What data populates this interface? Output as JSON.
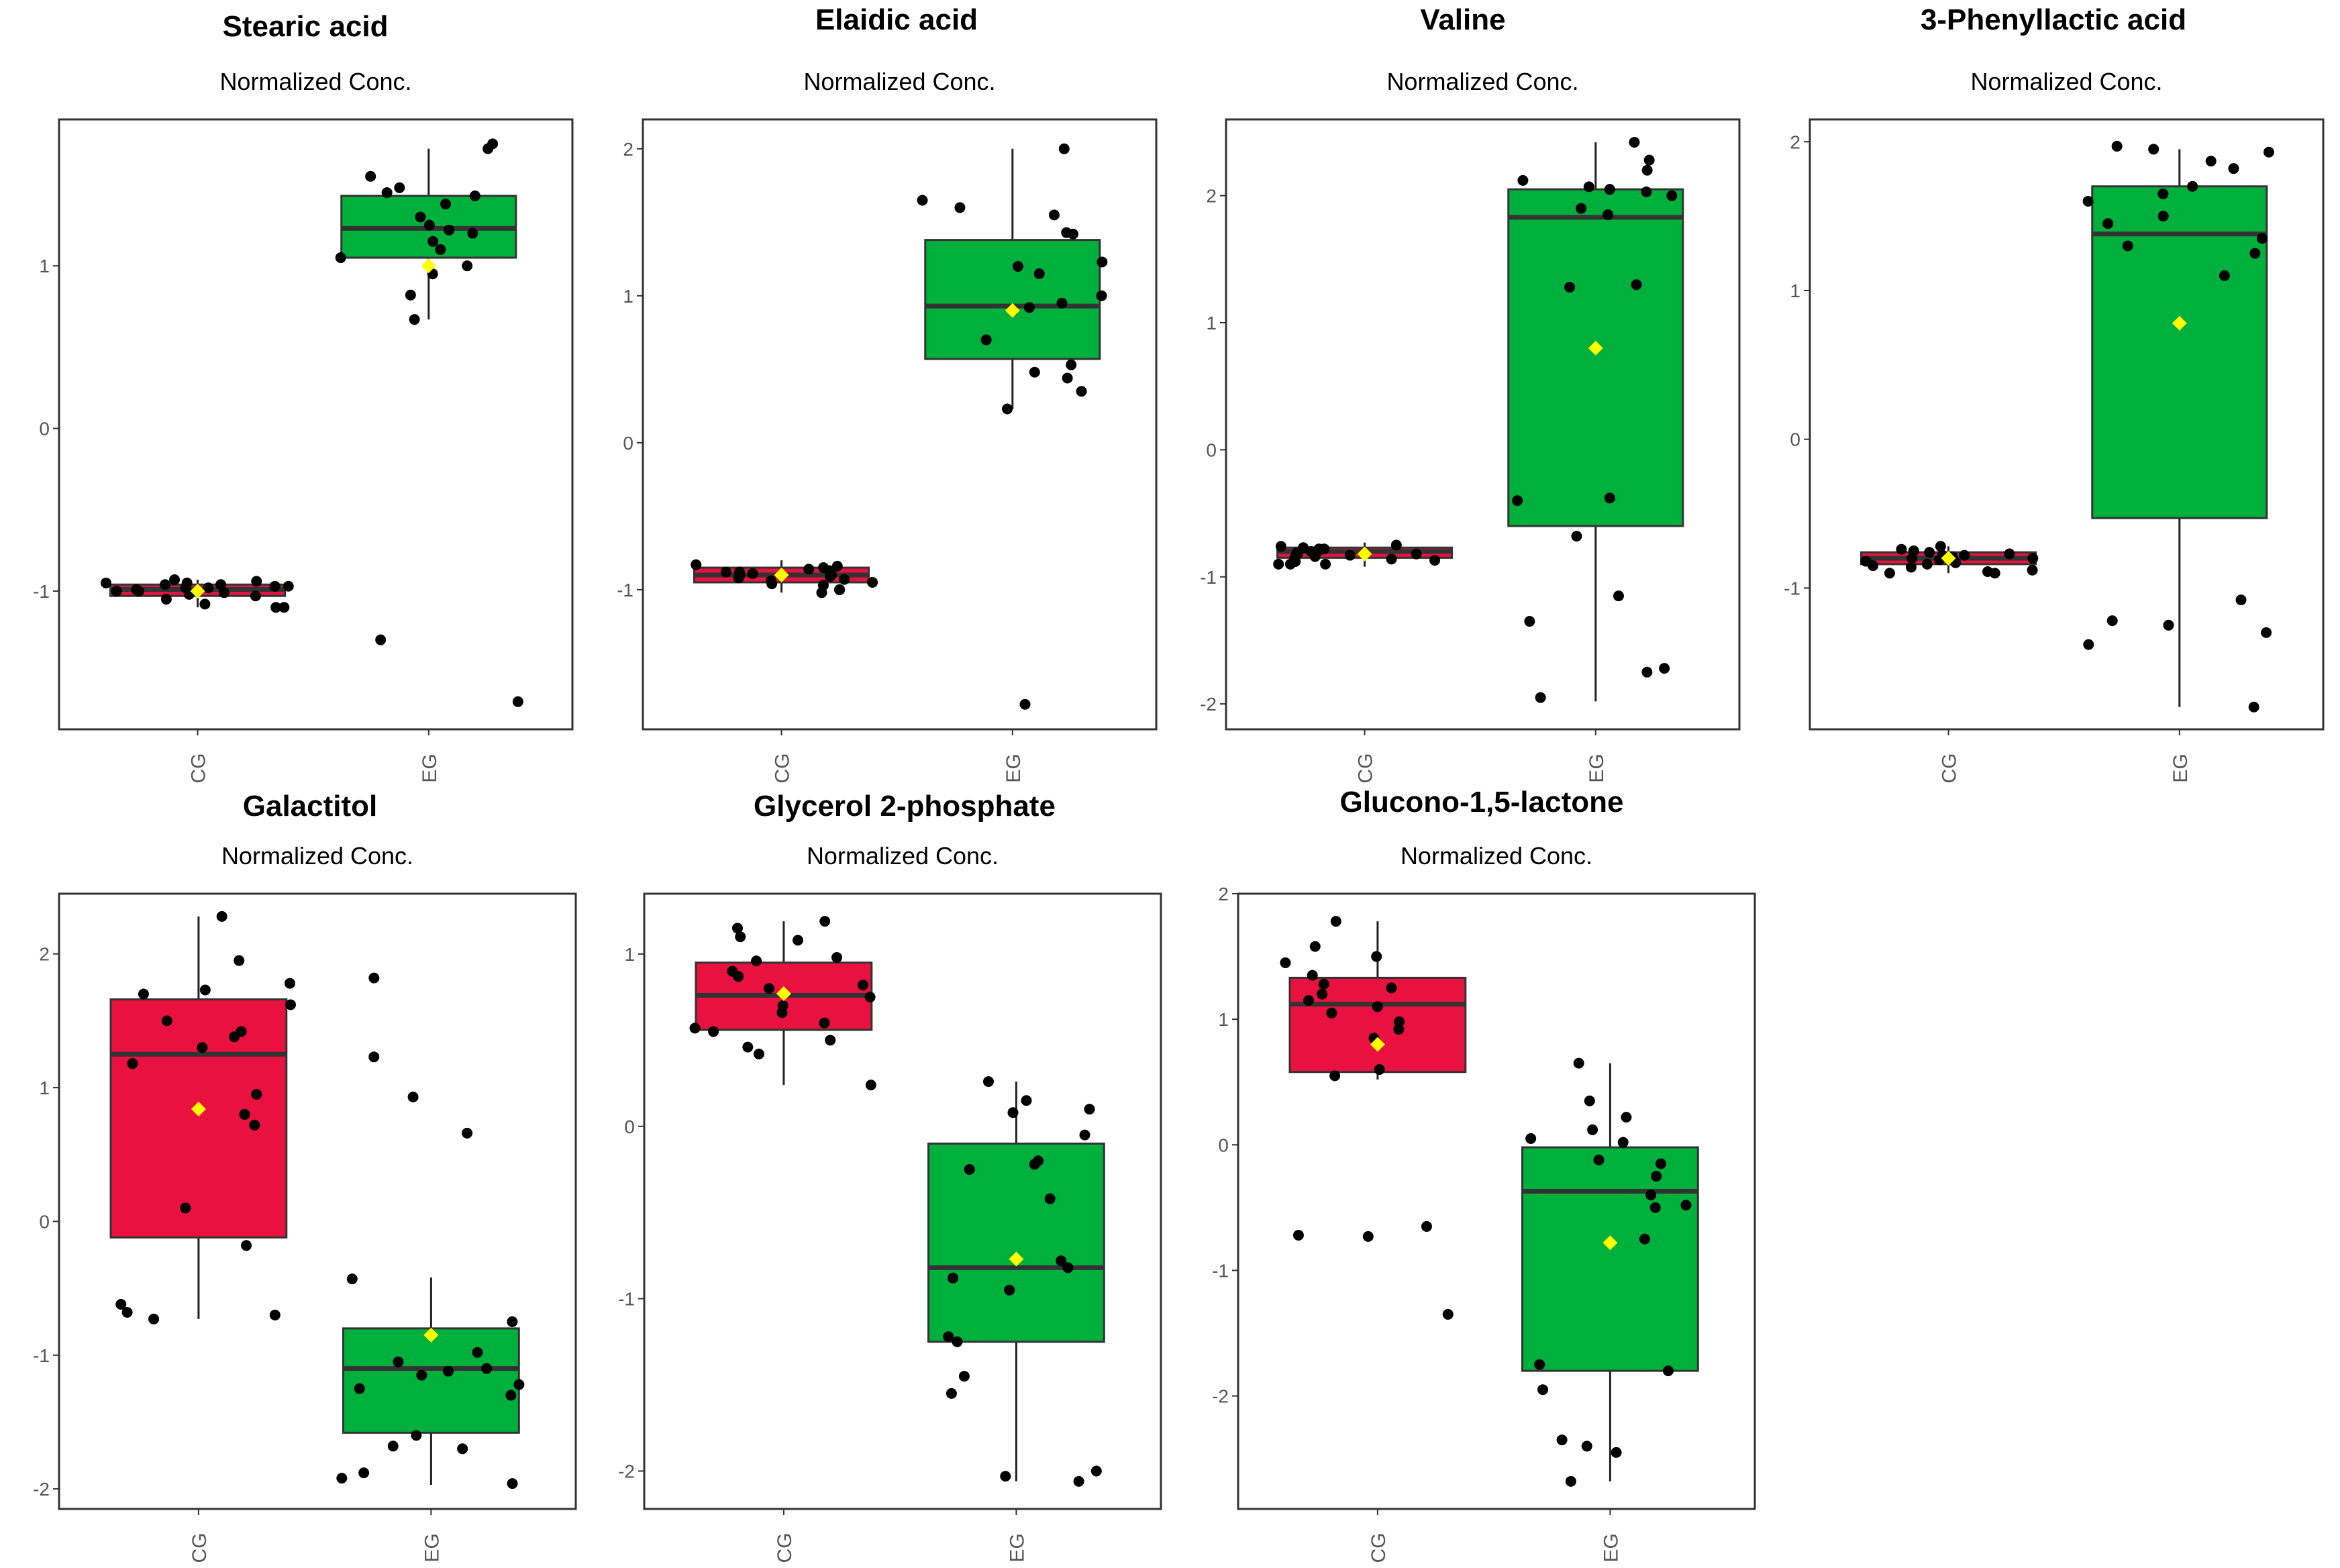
{
  "figure": {
    "colors": {
      "CG": "#E8113F",
      "EG": "#00B03C",
      "mean": "#FFFF00",
      "point": "#000000",
      "median": "#333333",
      "frame": "#333333"
    }
  },
  "chart_data": [
    {
      "type": "boxplot",
      "title": "Stearic acid",
      "subtitle": "Normalized Conc.",
      "categories": [
        "CG",
        "EG"
      ],
      "ylim": [
        -1.85,
        1.9
      ],
      "yticks": [
        -1,
        0,
        1
      ],
      "boxes": [
        {
          "group": "CG",
          "q1": -1.03,
          "median": -0.99,
          "q3": -0.96,
          "whisker_low": -1.1,
          "whisker_high": -0.93,
          "mean": -1.0,
          "points": [
            -0.95,
            -0.97,
            -1.0,
            -0.98,
            -0.93,
            -1.02,
            -0.96,
            -0.99,
            -1.05,
            -1.08,
            -1.1,
            -0.94,
            -1.0,
            -0.97,
            -1.03,
            -0.95,
            -1.1,
            -0.98,
            -1.01,
            -0.96
          ]
        },
        {
          "group": "EG",
          "q1": 1.05,
          "median": 1.23,
          "q3": 1.43,
          "whisker_low": 0.67,
          "whisker_high": 1.72,
          "mean": 1.0,
          "points": [
            1.55,
            1.2,
            1.1,
            1.3,
            1.45,
            1.72,
            1.43,
            1.25,
            1.15,
            0.95,
            1.05,
            1.38,
            1.22,
            0.82,
            1.75,
            1.48,
            0.67,
            -1.3,
            -1.68,
            1.0
          ]
        }
      ]
    },
    {
      "type": "boxplot",
      "title": "Elaidic acid",
      "subtitle": "Normalized Conc.",
      "categories": [
        "CG",
        "EG"
      ],
      "ylim": [
        -1.95,
        2.2
      ],
      "yticks": [
        -1,
        0,
        1,
        2
      ],
      "boxes": [
        {
          "group": "CG",
          "q1": -0.95,
          "median": -0.9,
          "q3": -0.85,
          "whisker_low": -1.02,
          "whisker_high": -0.8,
          "mean": -0.9,
          "points": [
            -0.85,
            -0.9,
            -0.95,
            -1.0,
            -0.88,
            -0.92,
            -0.87,
            -0.96,
            -1.02,
            -0.83,
            -0.89,
            -0.93,
            -0.86,
            -1.0,
            -0.9,
            -0.84,
            -0.91,
            -0.97,
            -0.88,
            -0.94
          ]
        },
        {
          "group": "EG",
          "q1": 0.57,
          "median": 0.93,
          "q3": 1.38,
          "whisker_low": 0.23,
          "whisker_high": 2.0,
          "mean": 0.9,
          "points": [
            2.0,
            1.65,
            1.6,
            1.55,
            1.42,
            1.23,
            1.2,
            1.15,
            1.0,
            0.92,
            0.9,
            0.7,
            0.53,
            0.48,
            0.44,
            0.35,
            0.23,
            1.43,
            0.95,
            -1.78
          ]
        }
      ]
    },
    {
      "type": "boxplot",
      "title": "Valine",
      "subtitle": "Normalized Conc.",
      "categories": [
        "CG",
        "EG"
      ],
      "ylim": [
        -2.2,
        2.6
      ],
      "yticks": [
        -2,
        -1,
        0,
        1,
        2
      ],
      "boxes": [
        {
          "group": "CG",
          "q1": -0.85,
          "median": -0.8,
          "q3": -0.77,
          "whisker_low": -0.92,
          "whisker_high": -0.73,
          "mean": -0.82,
          "points": [
            -0.8,
            -0.85,
            -0.78,
            -0.9,
            -0.82,
            -0.76,
            -0.88,
            -0.83,
            -0.79,
            -0.87,
            -0.81,
            -0.9,
            -0.75,
            -0.84,
            -0.8,
            -0.86,
            -0.78,
            -0.82,
            -0.9,
            -0.77
          ]
        },
        {
          "group": "EG",
          "q1": -0.6,
          "median": 1.83,
          "q3": 2.05,
          "whisker_low": -1.98,
          "whisker_high": 2.42,
          "mean": 0.8,
          "points": [
            2.42,
            2.28,
            2.2,
            2.12,
            2.07,
            2.05,
            2.0,
            1.9,
            1.85,
            1.3,
            1.28,
            -0.38,
            -0.4,
            -0.68,
            -1.15,
            -1.35,
            -1.72,
            -1.75,
            -1.95,
            2.03
          ]
        }
      ]
    },
    {
      "type": "boxplot",
      "title": "3-Phenyllactic acid",
      "subtitle": "Normalized Conc.",
      "categories": [
        "CG",
        "EG"
      ],
      "ylim": [
        -1.95,
        2.15
      ],
      "yticks": [
        -1,
        0,
        1,
        2
      ],
      "boxes": [
        {
          "group": "CG",
          "q1": -0.84,
          "median": -0.8,
          "q3": -0.76,
          "whisker_low": -0.9,
          "whisker_high": -0.72,
          "mean": -0.8,
          "points": [
            -0.8,
            -0.75,
            -0.85,
            -0.9,
            -0.78,
            -0.82,
            -0.72,
            -0.88,
            -0.79,
            -0.76,
            -0.84,
            -0.9,
            -0.77,
            -0.81,
            -0.83,
            -0.74,
            -0.86,
            -0.8,
            -0.78,
            -0.89
          ]
        },
        {
          "group": "EG",
          "q1": -0.53,
          "median": 1.38,
          "q3": 1.7,
          "whisker_low": -1.8,
          "whisker_high": 1.95,
          "mean": 0.78,
          "points": [
            1.95,
            1.93,
            1.87,
            1.82,
            1.7,
            1.65,
            1.6,
            1.5,
            1.45,
            1.35,
            1.3,
            1.25,
            1.1,
            -1.08,
            -1.22,
            -1.25,
            -1.3,
            -1.38,
            -1.8,
            1.97
          ]
        }
      ]
    },
    {
      "type": "boxplot",
      "title": "Galactitol",
      "subtitle": "Normalized Conc.",
      "categories": [
        "CG",
        "EG"
      ],
      "ylim": [
        -2.15,
        2.45
      ],
      "yticks": [
        -2,
        -1,
        0,
        1,
        2
      ],
      "boxes": [
        {
          "group": "CG",
          "q1": -0.12,
          "median": 1.25,
          "q3": 1.66,
          "whisker_low": -0.73,
          "whisker_high": 2.28,
          "mean": 0.84,
          "points": [
            2.28,
            1.95,
            1.78,
            1.73,
            1.7,
            1.62,
            1.5,
            1.42,
            1.38,
            1.3,
            1.18,
            0.95,
            0.8,
            0.72,
            0.1,
            -0.18,
            -0.62,
            -0.68,
            -0.7,
            -0.73
          ]
        },
        {
          "group": "EG",
          "q1": -1.58,
          "median": -1.1,
          "q3": -0.8,
          "whisker_low": -1.97,
          "whisker_high": -0.42,
          "mean": -0.85,
          "points": [
            1.82,
            1.23,
            0.93,
            0.66,
            -0.43,
            -0.75,
            -0.98,
            -1.05,
            -1.1,
            -1.12,
            -1.22,
            -1.25,
            -1.3,
            -1.6,
            -1.68,
            -1.7,
            -1.88,
            -1.92,
            -1.96,
            -1.15
          ]
        }
      ]
    },
    {
      "type": "boxplot",
      "title": "Glycerol 2-phosphate",
      "subtitle": "Normalized Conc.",
      "categories": [
        "CG",
        "EG"
      ],
      "ylim": [
        -2.22,
        1.35
      ],
      "yticks": [
        -2,
        -1,
        0,
        1
      ],
      "boxes": [
        {
          "group": "CG",
          "q1": 0.56,
          "median": 0.76,
          "q3": 0.95,
          "whisker_low": 0.24,
          "whisker_high": 1.19,
          "mean": 0.77,
          "points": [
            1.19,
            1.15,
            1.1,
            1.08,
            0.98,
            0.96,
            0.9,
            0.87,
            0.82,
            0.75,
            0.7,
            0.66,
            0.6,
            0.57,
            0.55,
            0.5,
            0.46,
            0.42,
            0.24,
            0.8
          ]
        },
        {
          "group": "EG",
          "q1": -1.25,
          "median": -0.82,
          "q3": -0.1,
          "whisker_low": -2.06,
          "whisker_high": 0.26,
          "mean": -0.77,
          "points": [
            0.26,
            0.15,
            0.1,
            0.08,
            -0.05,
            -0.2,
            -0.22,
            -0.25,
            -0.42,
            -0.78,
            -0.82,
            -0.88,
            -0.95,
            -1.22,
            -1.25,
            -1.45,
            -1.55,
            -2.0,
            -2.03,
            -2.06
          ]
        }
      ]
    },
    {
      "type": "boxplot",
      "title": "Glucono-1,5-lactone",
      "subtitle": "Normalized Conc.",
      "categories": [
        "CG",
        "EG"
      ],
      "ylim": [
        -2.9,
        2.0
      ],
      "yticks": [
        -2,
        -1,
        0,
        1,
        2
      ],
      "boxes": [
        {
          "group": "CG",
          "q1": 0.58,
          "median": 1.12,
          "q3": 1.33,
          "whisker_low": 0.52,
          "whisker_high": 1.78,
          "mean": 0.8,
          "points": [
            1.78,
            1.58,
            1.5,
            1.45,
            1.35,
            1.28,
            1.25,
            1.2,
            1.15,
            1.1,
            1.05,
            0.98,
            0.92,
            0.85,
            0.6,
            0.55,
            -0.65,
            -0.72,
            -0.73,
            -1.35
          ]
        },
        {
          "group": "EG",
          "q1": -1.8,
          "median": -0.37,
          "q3": -0.02,
          "whisker_low": -2.68,
          "whisker_high": 0.65,
          "mean": -0.78,
          "points": [
            0.65,
            0.35,
            0.22,
            0.12,
            0.05,
            0.02,
            -0.12,
            -0.15,
            -0.25,
            -0.4,
            -0.48,
            -0.5,
            -0.75,
            -1.75,
            -1.8,
            -1.95,
            -2.35,
            -2.4,
            -2.45,
            -2.68
          ]
        }
      ]
    }
  ]
}
